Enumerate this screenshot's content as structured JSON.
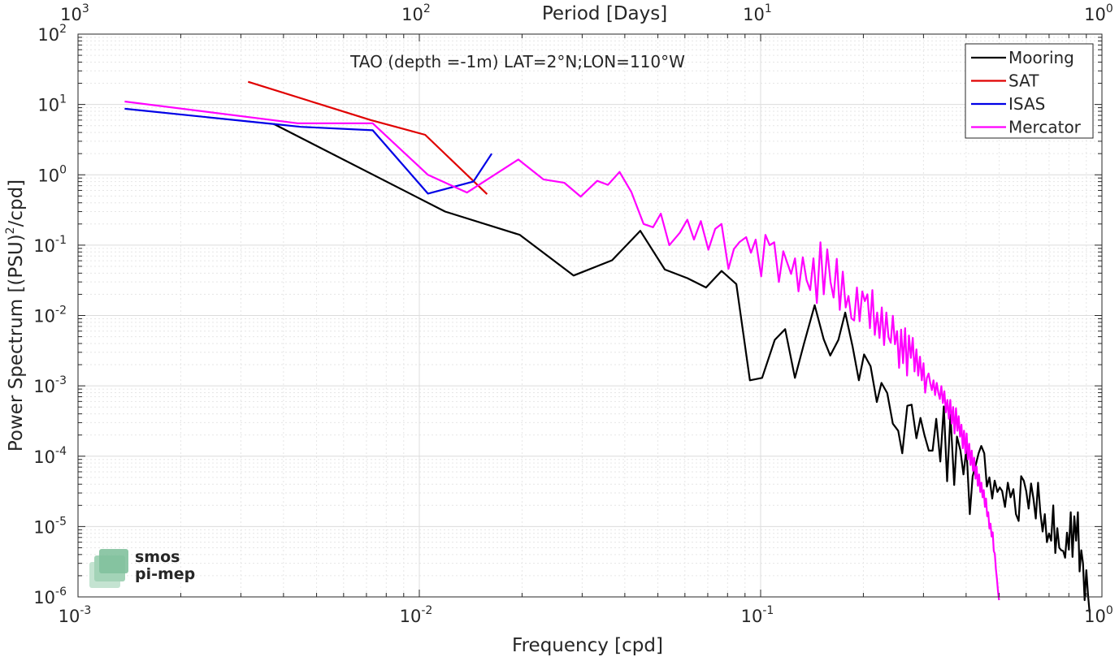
{
  "chart_data": {
    "type": "line",
    "title": "TAO (depth =-1m) LAT=2°N;LON=110°W",
    "xlabel": "Frequency [cpd]",
    "ylabel_main": "Power Spectrum [(PSU)",
    "ylabel_sup": "2",
    "ylabel_tail": "/cpd]",
    "top_xlabel": "Period [Days]",
    "xscale": "log",
    "yscale": "log",
    "xlim": [
      0.001,
      1
    ],
    "ylim": [
      1e-06,
      100
    ],
    "grid": true,
    "legend_position": "top-right",
    "x_ticks": [
      {
        "value": 0.001,
        "base": "10",
        "exp": "-3"
      },
      {
        "value": 0.01,
        "base": "10",
        "exp": "-2"
      },
      {
        "value": 0.1,
        "base": "10",
        "exp": "-1"
      },
      {
        "value": 1,
        "base": "10",
        "exp": "0"
      }
    ],
    "y_ticks": [
      {
        "value": 100,
        "base": "10",
        "exp": "2"
      },
      {
        "value": 10,
        "base": "10",
        "exp": "1"
      },
      {
        "value": 1,
        "base": "10",
        "exp": "0"
      },
      {
        "value": 0.1,
        "base": "10",
        "exp": "-1"
      },
      {
        "value": 0.01,
        "base": "10",
        "exp": "-2"
      },
      {
        "value": 0.001,
        "base": "10",
        "exp": "-3"
      },
      {
        "value": 0.0001,
        "base": "10",
        "exp": "-4"
      },
      {
        "value": 1e-05,
        "base": "10",
        "exp": "-5"
      },
      {
        "value": 1e-06,
        "base": "10",
        "exp": "-6"
      }
    ],
    "top_ticks": [
      {
        "freq": 0.001,
        "base": "10",
        "exp": "3"
      },
      {
        "freq": 0.01,
        "base": "10",
        "exp": "2"
      },
      {
        "freq": 0.1,
        "base": "10",
        "exp": "1"
      },
      {
        "freq": 1,
        "base": "10",
        "exp": "0"
      }
    ],
    "series": [
      {
        "name": "Mooring",
        "color": "#000000",
        "points": [
          [
            0.00374,
            5.3
          ],
          [
            0.0119,
            0.3
          ],
          [
            0.0197,
            0.14
          ],
          [
            0.0283,
            0.037
          ],
          [
            0.0367,
            0.061
          ],
          [
            0.0444,
            0.16
          ],
          [
            0.0524,
            0.045
          ],
          [
            0.061,
            0.034
          ],
          [
            0.0692,
            0.025
          ],
          [
            0.0768,
            0.043
          ],
          [
            0.0849,
            0.028
          ],
          [
            0.093,
            0.0012
          ],
          [
            0.101,
            0.0013
          ],
          [
            0.11,
            0.0045
          ],
          [
            0.118,
            0.0064
          ],
          [
            0.126,
            0.0013
          ],
          [
            0.134,
            0.004
          ],
          [
            0.144,
            0.014
          ],
          [
            0.153,
            0.0046
          ],
          [
            0.16,
            0.0027
          ],
          [
            0.169,
            0.0045
          ],
          [
            0.177,
            0.011
          ],
          [
            0.186,
            0.0036
          ],
          [
            0.194,
            0.0012
          ],
          [
            0.201,
            0.0028
          ],
          [
            0.21,
            0.0019
          ],
          [
            0.219,
            0.00059
          ],
          [
            0.226,
            0.0011
          ],
          [
            0.235,
            0.00079
          ],
          [
            0.244,
            0.00029
          ],
          [
            0.253,
            0.00023
          ],
          [
            0.26,
            0.00011
          ],
          [
            0.269,
            0.00052
          ],
          [
            0.277,
            0.00054
          ],
          [
            0.286,
            0.00018
          ],
          [
            0.294,
            0.00035
          ],
          [
            0.302,
            0.0002
          ],
          [
            0.311,
            0.00012
          ],
          [
            0.319,
            0.00012
          ],
          [
            0.327,
            0.00034
          ],
          [
            0.336,
            8.4e-05
          ],
          [
            0.344,
            0.00051
          ],
          [
            0.352,
            4.4e-05
          ],
          [
            0.36,
            0.00039
          ],
          [
            0.369,
            3.9e-05
          ],
          [
            0.376,
            0.00019
          ],
          [
            0.385,
            0.00012
          ],
          [
            0.393,
            5.5e-05
          ],
          [
            0.401,
            0.00013
          ],
          [
            0.41,
            1.5e-05
          ],
          [
            0.418,
            5.2e-05
          ],
          [
            0.427,
            7.6e-05
          ],
          [
            0.435,
            0.00011
          ],
          [
            0.443,
            0.00014
          ],
          [
            0.452,
            0.00011
          ],
          [
            0.46,
            3.7e-05
          ],
          [
            0.468,
            5e-05
          ],
          [
            0.477,
            2.5e-05
          ],
          [
            0.485,
            4.5e-05
          ],
          [
            0.494,
            3.1e-05
          ],
          [
            0.502,
            3.6e-05
          ],
          [
            0.51,
            3.2e-05
          ],
          [
            0.52,
            1.9e-05
          ],
          [
            0.53,
            4.2e-05
          ],
          [
            0.54,
            2.6e-05
          ],
          [
            0.55,
            3.4e-05
          ],
          [
            0.56,
            1.5e-05
          ],
          [
            0.57,
            1.2e-05
          ],
          [
            0.58,
            5.2e-05
          ],
          [
            0.59,
            4.5e-05
          ],
          [
            0.6,
            3.2e-05
          ],
          [
            0.61,
            1.8e-05
          ],
          [
            0.62,
            4.1e-05
          ],
          [
            0.63,
            2.5e-05
          ],
          [
            0.64,
            1.3e-05
          ],
          [
            0.65,
            4.2e-05
          ],
          [
            0.66,
            1.6e-05
          ],
          [
            0.67,
            8.5e-06
          ],
          [
            0.68,
            1.5e-05
          ],
          [
            0.69,
            6e-06
          ],
          [
            0.7,
            8e-06
          ],
          [
            0.71,
            6.3e-06
          ],
          [
            0.72,
            2e-05
          ],
          [
            0.73,
            4.2e-06
          ],
          [
            0.74,
            9.5e-06
          ],
          [
            0.75,
            5e-06
          ],
          [
            0.76,
            4.6e-06
          ],
          [
            0.77,
            4.5e-06
          ],
          [
            0.78,
            3.6e-06
          ],
          [
            0.79,
            8.2e-06
          ],
          [
            0.8,
            4.7e-06
          ],
          [
            0.81,
            1.6e-05
          ],
          [
            0.82,
            3.7e-06
          ],
          [
            0.83,
            1.4e-05
          ],
          [
            0.84,
            6.3e-06
          ],
          [
            0.85,
            1.6e-05
          ],
          [
            0.86,
            2.3e-06
          ],
          [
            0.87,
            4.6e-06
          ],
          [
            0.88,
            3e-06
          ],
          [
            0.89,
            9e-07
          ],
          [
            0.9,
            2.4e-06
          ],
          [
            0.91,
            1.1e-06
          ],
          [
            0.92,
            6e-07
          ]
        ]
      },
      {
        "name": "SAT",
        "color": "#e00000",
        "points": [
          [
            0.00315,
            21
          ],
          [
            0.0072,
            6
          ],
          [
            0.0104,
            3.7
          ],
          [
            0.0158,
            0.53
          ]
        ]
      },
      {
        "name": "ISAS",
        "color": "#0000e6",
        "points": [
          [
            0.00137,
            8.7
          ],
          [
            0.0037,
            5.3
          ],
          [
            0.0045,
            4.8
          ],
          [
            0.0073,
            4.3
          ],
          [
            0.0106,
            0.54
          ],
          [
            0.0144,
            0.8
          ],
          [
            0.0163,
            2.0
          ]
        ]
      },
      {
        "name": "Mercator",
        "color": "#ff00ff",
        "points": [
          [
            0.00137,
            11
          ],
          [
            0.0044,
            5.4
          ],
          [
            0.0073,
            5.4
          ],
          [
            0.0106,
            1.0
          ],
          [
            0.0138,
            0.56
          ],
          [
            0.0195,
            1.65
          ],
          [
            0.0231,
            0.86
          ],
          [
            0.0266,
            0.77
          ],
          [
            0.0297,
            0.49
          ],
          [
            0.0332,
            0.82
          ],
          [
            0.0357,
            0.72
          ],
          [
            0.0386,
            1.1
          ],
          [
            0.0418,
            0.57
          ],
          [
            0.0454,
            0.2
          ],
          [
            0.0484,
            0.18
          ],
          [
            0.051,
            0.28
          ],
          [
            0.054,
            0.1
          ],
          [
            0.058,
            0.15
          ],
          [
            0.061,
            0.23
          ],
          [
            0.0638,
            0.12
          ],
          [
            0.0668,
            0.22
          ],
          [
            0.0703,
            0.086
          ],
          [
            0.0736,
            0.17
          ],
          [
            0.0768,
            0.2
          ],
          [
            0.0805,
            0.046
          ],
          [
            0.0835,
            0.088
          ],
          [
            0.0866,
            0.11
          ],
          [
            0.0907,
            0.13
          ],
          [
            0.0937,
            0.078
          ],
          [
            0.0967,
            0.12
          ],
          [
            0.1004,
            0.036
          ],
          [
            0.1033,
            0.14
          ],
          [
            0.1063,
            0.1
          ],
          [
            0.1096,
            0.11
          ],
          [
            0.1131,
            0.03
          ],
          [
            0.1165,
            0.082
          ],
          [
            0.1198,
            0.055
          ],
          [
            0.1228,
            0.039
          ],
          [
            0.1261,
            0.065
          ],
          [
            0.1291,
            0.022
          ],
          [
            0.1329,
            0.067
          ],
          [
            0.1363,
            0.032
          ],
          [
            0.1397,
            0.023
          ],
          [
            0.1428,
            0.065
          ],
          [
            0.1461,
            0.015
          ],
          [
            0.1497,
            0.11
          ],
          [
            0.1531,
            0.02
          ],
          [
            0.1568,
            0.087
          ],
          [
            0.1602,
            0.03
          ],
          [
            0.1636,
            0.018
          ],
          [
            0.1671,
            0.064
          ],
          [
            0.1706,
            0.012
          ],
          [
            0.1741,
            0.042
          ],
          [
            0.1775,
            0.013
          ],
          [
            0.1809,
            0.019
          ],
          [
            0.1845,
            0.0091
          ],
          [
            0.188,
            0.0085
          ],
          [
            0.1915,
            0.025
          ],
          [
            0.195,
            0.0083
          ],
          [
            0.1985,
            0.022
          ],
          [
            0.202,
            0.016
          ],
          [
            0.2055,
            0.02
          ],
          [
            0.209,
            0.0066
          ],
          [
            0.2125,
            0.023
          ],
          [
            0.216,
            0.0053
          ],
          [
            0.2195,
            0.011
          ],
          [
            0.223,
            0.0048
          ],
          [
            0.2265,
            0.013
          ],
          [
            0.23,
            0.0038
          ],
          [
            0.2335,
            0.011
          ],
          [
            0.237,
            0.0049
          ],
          [
            0.2405,
            0.0041
          ],
          [
            0.244,
            0.0099
          ],
          [
            0.2475,
            0.0039
          ],
          [
            0.251,
            0.006
          ],
          [
            0.2545,
            0.0018
          ],
          [
            0.258,
            0.0063
          ],
          [
            0.2615,
            0.0021
          ],
          [
            0.265,
            0.0066
          ],
          [
            0.2685,
            0.0014
          ],
          [
            0.272,
            0.0052
          ],
          [
            0.2755,
            0.0025
          ],
          [
            0.279,
            0.0048
          ],
          [
            0.2825,
            0.0016
          ],
          [
            0.286,
            0.0033
          ],
          [
            0.2895,
            0.0014
          ],
          [
            0.293,
            0.0026
          ],
          [
            0.2965,
            0.0012
          ],
          [
            0.3,
            0.0021
          ],
          [
            0.3035,
            0.0008
          ],
          [
            0.307,
            0.0013
          ],
          [
            0.3105,
            0.0015
          ],
          [
            0.314,
            0.0011
          ],
          [
            0.3175,
            0.00087
          ],
          [
            0.321,
            0.0012
          ],
          [
            0.3245,
            0.00074
          ],
          [
            0.328,
            0.0011
          ],
          [
            0.3315,
            0.00081
          ],
          [
            0.335,
            0.00065
          ],
          [
            0.3385,
            0.00099
          ],
          [
            0.342,
            0.00057
          ],
          [
            0.3455,
            0.00084
          ],
          [
            0.349,
            0.00042
          ],
          [
            0.3525,
            0.00063
          ],
          [
            0.356,
            0.00034
          ],
          [
            0.3595,
            0.00063
          ],
          [
            0.363,
            0.00029
          ],
          [
            0.3665,
            0.0005
          ],
          [
            0.37,
            0.00021
          ],
          [
            0.3735,
            0.00048
          ],
          [
            0.377,
            0.00023
          ],
          [
            0.3805,
            0.00037
          ],
          [
            0.384,
            0.00019
          ],
          [
            0.3875,
            0.00028
          ],
          [
            0.391,
            0.00013
          ],
          [
            0.3945,
            0.00023
          ],
          [
            0.398,
            0.00011
          ],
          [
            0.4015,
            0.00021
          ],
          [
            0.405,
            9e-05
          ],
          [
            0.4085,
            0.00015
          ],
          [
            0.412,
            7.5e-05
          ],
          [
            0.4155,
            0.00012
          ],
          [
            0.419,
            6.2e-05
          ],
          [
            0.4225,
            9.5e-05
          ],
          [
            0.426,
            4.8e-05
          ],
          [
            0.4295,
            7.1e-05
          ],
          [
            0.433,
            3.8e-05
          ],
          [
            0.4365,
            5.5e-05
          ],
          [
            0.44,
            3.1e-05
          ],
          [
            0.4435,
            4.2e-05
          ],
          [
            0.447,
            2.6e-05
          ],
          [
            0.4505,
            3.3e-05
          ],
          [
            0.454,
            1.9e-05
          ],
          [
            0.4575,
            2.5e-05
          ],
          [
            0.461,
            1.4e-05
          ],
          [
            0.4645,
            1.6e-05
          ],
          [
            0.468,
            9.4e-06
          ],
          [
            0.4715,
            1.1e-05
          ],
          [
            0.475,
            7.2e-06
          ],
          [
            0.4785,
            8.3e-06
          ],
          [
            0.482,
            4.5e-06
          ],
          [
            0.4855,
            4.1e-06
          ],
          [
            0.489,
            2.5e-06
          ],
          [
            0.4925,
            1.8e-06
          ],
          [
            0.496,
            1.2e-06
          ],
          [
            0.4995,
            9e-07
          ]
        ]
      }
    ]
  },
  "logo": {
    "line1": "smos",
    "line2": "pi-mep"
  }
}
